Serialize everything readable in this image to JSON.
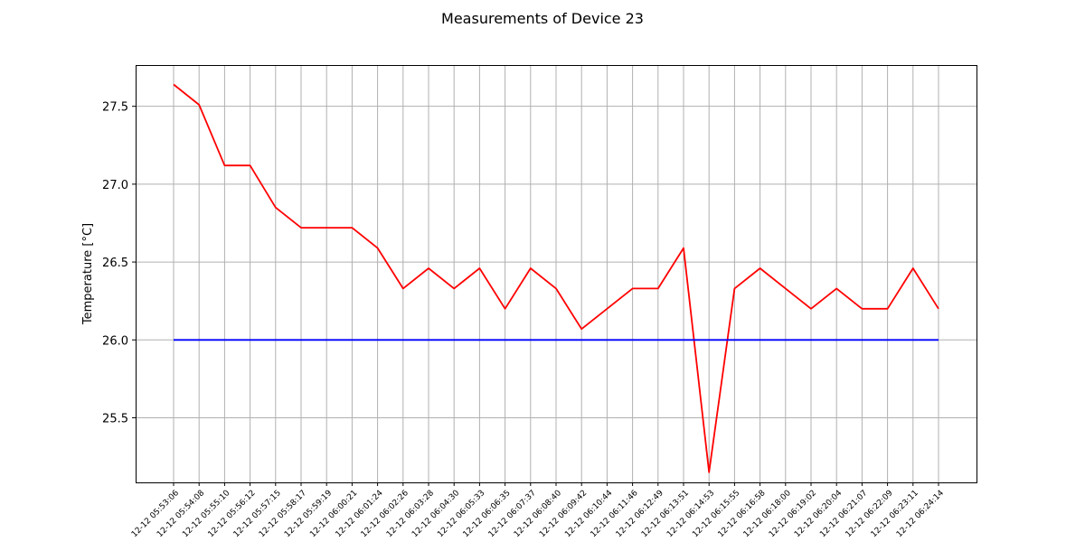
{
  "chart_data": {
    "type": "line",
    "title": "Measurements of Device 23",
    "xlabel": "",
    "ylabel": "Temperature [°C]",
    "categories": [
      "12-12 05:53:06",
      "12-12 05:54:08",
      "12-12 05:55:10",
      "12-12 05:56:12",
      "12-12 05:57:15",
      "12-12 05:58:17",
      "12-12 05:59:19",
      "12-12 06:00:21",
      "12-12 06:01:24",
      "12-12 06:02:26",
      "12-12 06:03:28",
      "12-12 06:04:30",
      "12-12 06:05:33",
      "12-12 06:06:35",
      "12-12 06:07:37",
      "12-12 06:08:40",
      "12-12 06:09:42",
      "12-12 06:10:44",
      "12-12 06:11:46",
      "12-12 06:12:49",
      "12-12 06:13:51",
      "12-12 06:14:53",
      "12-12 06:15:55",
      "12-12 06:16:58",
      "12-12 06:18:00",
      "12-12 06:19:02",
      "12-12 06:20:04",
      "12-12 06:21:07",
      "12-12 06:22:09",
      "12-12 06:23:11",
      "12-12 06:24:14"
    ],
    "series": [
      {
        "color": "#ff0000",
        "values": [
          27.64,
          27.51,
          27.12,
          27.12,
          26.85,
          26.72,
          26.72,
          26.72,
          26.59,
          26.33,
          26.46,
          26.33,
          26.46,
          26.2,
          26.46,
          26.33,
          26.07,
          26.2,
          26.33,
          26.33,
          26.59,
          25.15,
          26.33,
          26.46,
          26.33,
          26.2,
          26.33,
          26.2,
          26.2,
          26.46,
          26.2
        ]
      },
      {
        "color": "#0000ff",
        "values": [
          26.0,
          26.0,
          26.0,
          26.0,
          26.0,
          26.0,
          26.0,
          26.0,
          26.0,
          26.0,
          26.0,
          26.0,
          26.0,
          26.0,
          26.0,
          26.0,
          26.0,
          26.0,
          26.0,
          26.0,
          26.0,
          26.0,
          26.0,
          26.0,
          26.0,
          26.0,
          26.0,
          26.0,
          26.0,
          26.0,
          26.0
        ]
      }
    ],
    "yticks": [
      "25.5",
      "26.0",
      "26.5",
      "27.0",
      "27.5"
    ],
    "ylim": [
      25.085,
      27.765
    ],
    "grid": true
  }
}
